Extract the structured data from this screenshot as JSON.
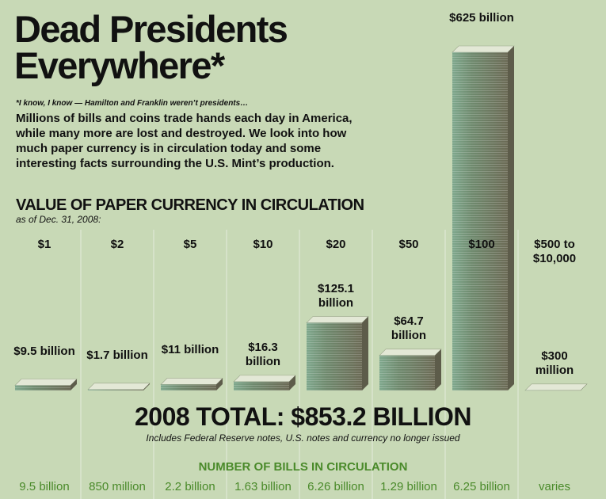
{
  "chart_data": {
    "type": "bar",
    "title": "Dead Presidents Everywhere*",
    "footnote": "*I know, I know — Hamilton and Franklin weren’t presidents…",
    "intro": "Millions of bills and coins trade hands each day in America, while many more are lost and destroyed. We look into how much paper currency is in circulation today and some interesting facts surrounding the U.S. Mint’s production.",
    "subtitle": "VALUE OF PAPER CURRENCY IN CIRCULATION",
    "as_of": "as of Dec. 31, 2008:",
    "categories": [
      "$1",
      "$2",
      "$5",
      "$10",
      "$20",
      "$50",
      "$100",
      "$500 to $10,000"
    ],
    "values": [
      9.5,
      1.7,
      11,
      16.3,
      125.1,
      64.7,
      625,
      0.3
    ],
    "value_labels": [
      "$9.5 billion",
      "$1.7 billion",
      "$11 billion",
      "$16.3 billion",
      "$125.1 billion",
      "$64.7 billion",
      "$625 billion",
      "$300 million"
    ],
    "ylim": [
      0,
      625
    ],
    "total": "2008 TOTAL: $853.2 BILLION",
    "total_note": "Includes Federal Reserve notes, U.S. notes and currency no longer issued",
    "bills_title": "NUMBER OF BILLS IN CIRCULATION",
    "bill_counts": [
      "9.5 billion",
      "850 million",
      "2.2 billion",
      "1.63 billion",
      "6.26 billion",
      "1.29 billion",
      "6.25 billion",
      "varies"
    ]
  }
}
